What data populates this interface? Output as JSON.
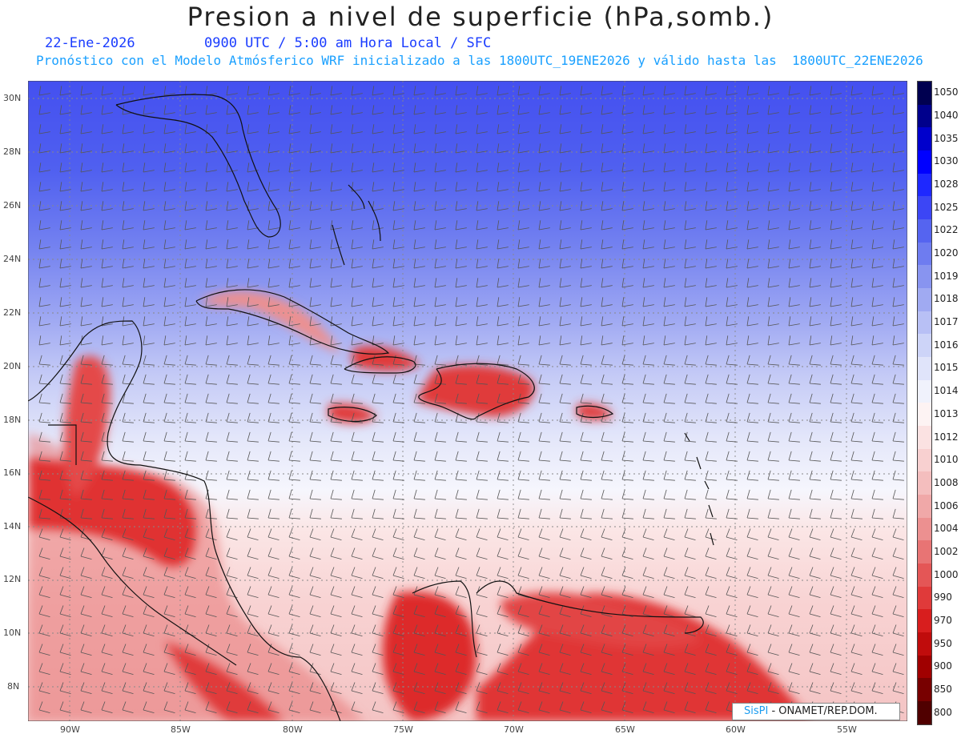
{
  "header": {
    "title": "Presion a nivel de superficie (hPa,somb.)",
    "date": "22-Ene-2026",
    "time_info": "0900 UTC / 5:00 am Hora Local / SFC",
    "model_info": "Pronóstico con el Modelo Atmósferico WRF inicializado a las 1800UTC_19ENE2026 y válido hasta las  1800UTC_22ENE2026"
  },
  "map": {
    "lon_labels": [
      "90W",
      "85W",
      "80W",
      "75W",
      "70W",
      "65W",
      "60W",
      "55W"
    ],
    "lat_labels": [
      "30N",
      "28N",
      "26N",
      "24N",
      "22N",
      "20N",
      "18N",
      "16N",
      "14N",
      "12N",
      "10N",
      "8N"
    ]
  },
  "legend": {
    "levels": [
      "1050",
      "1040",
      "1035",
      "1030",
      "1028",
      "1025",
      "1022",
      "1020",
      "1019",
      "1018",
      "1017",
      "1016",
      "1015",
      "1014",
      "1013",
      "1012",
      "1010",
      "1008",
      "1006",
      "1004",
      "1002",
      "1000",
      "990",
      "970",
      "950",
      "900",
      "850",
      "800"
    ],
    "colors": [
      "#000050",
      "#00008c",
      "#0000cc",
      "#0000ff",
      "#1e28ff",
      "#3c46f5",
      "#5564f0",
      "#6e7cf0",
      "#8894f0",
      "#a0aaf2",
      "#b8c0f5",
      "#cdd4f8",
      "#e0e4fa",
      "#f0f2fc",
      "#fdf3f3",
      "#fbe2e2",
      "#f8d0d0",
      "#f4bebe",
      "#f0a8a8",
      "#ec9090",
      "#e87474",
      "#e45656",
      "#e03a3a",
      "#d81e1e",
      "#c00c0c",
      "#a00000",
      "#780000",
      "#500000"
    ]
  },
  "credit": {
    "brand": "SisPI",
    "org": "- ONAMET/REP.DOM."
  }
}
